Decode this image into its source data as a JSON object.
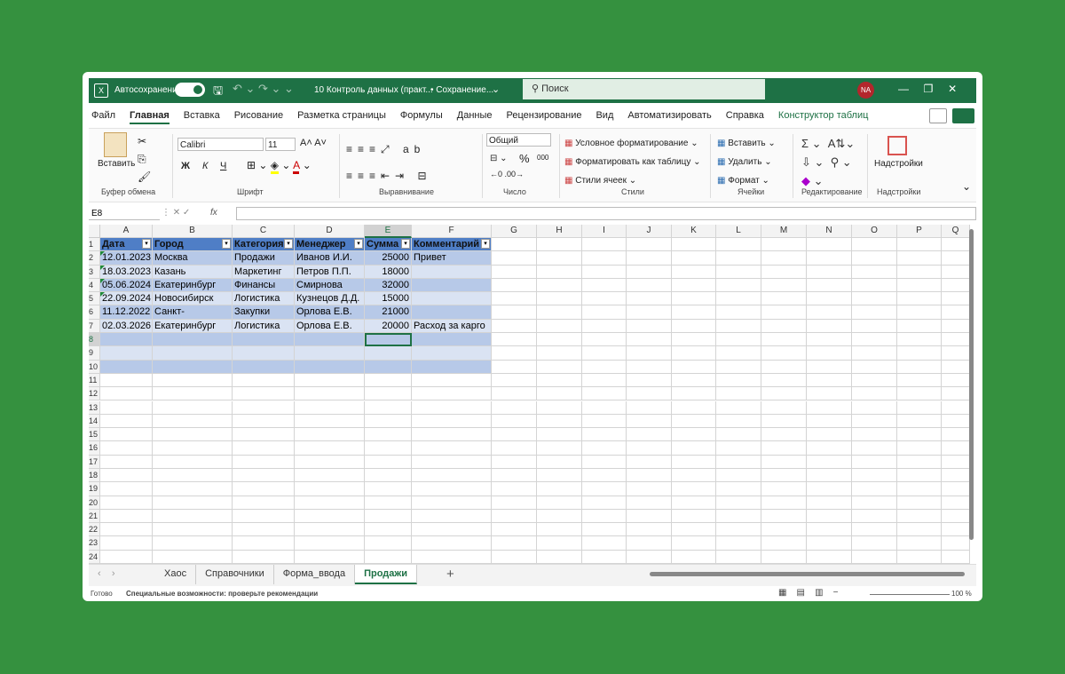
{
  "title_bar": {
    "autosave": "Автосохранение",
    "filename": "10 Контроль данных (практ...",
    "status": "• Сохранение...",
    "search": "Поиск",
    "user": "NA"
  },
  "ribbon": {
    "tabs": [
      "Файл",
      "Главная",
      "Вставка",
      "Рисование",
      "Разметка страницы",
      "Формулы",
      "Данные",
      "Рецензирование",
      "Вид",
      "Автоматизировать",
      "Справка",
      "Конструктор таблиц"
    ],
    "clipboard": {
      "paste": "Вставить",
      "label": "Буфер обмена"
    },
    "font": {
      "name": "Calibri",
      "size": "11",
      "bold": "Ж",
      "italic": "К",
      "underline": "Ч",
      "label": "Шрифт"
    },
    "alignment": {
      "label": "Выравнивание"
    },
    "number": {
      "format": "Общий",
      "percent": "%",
      "thousands": "000",
      "label": "Число"
    },
    "styles": {
      "items": [
        "Условное форматирование",
        "Форматировать как таблицу",
        "Стили ячеек"
      ],
      "label": "Стили"
    },
    "cells": {
      "items": [
        "Вставить",
        "Удалить",
        "Формат"
      ],
      "label": "Ячейки"
    },
    "editing": {
      "label": "Редактирование"
    },
    "addins": {
      "button": "Надстройки",
      "label": "Надстройки"
    }
  },
  "formula_bar": {
    "name_box": "E8",
    "fx": "fx"
  },
  "grid": {
    "columns": [
      "A",
      "B",
      "C",
      "D",
      "E",
      "F",
      "G",
      "H",
      "I",
      "J",
      "K",
      "L",
      "M",
      "N",
      "O",
      "P",
      "Q"
    ],
    "row_numbers": [
      1,
      2,
      3,
      4,
      5,
      6,
      7,
      8,
      9,
      10,
      11,
      12,
      13,
      14,
      15,
      16,
      17,
      18,
      19,
      20,
      21,
      22,
      23,
      24
    ]
  },
  "table": {
    "headers": [
      "Дата",
      "Город",
      "Категория",
      "Менеджер",
      "Сумма",
      "Комментарий"
    ],
    "rows": [
      [
        "12.01.2023",
        "Москва",
        "Продажи",
        "Иванов И.И.",
        25000,
        "Привет"
      ],
      [
        "18.03.2023",
        "Казань",
        "Маркетинг",
        "Петров П.П.",
        18000
      ],
      [
        "05.06.2024",
        "Екатеринбург",
        "Финансы",
        "Смирнова А.А.",
        32000
      ],
      [
        "22.09.2024",
        "Новосибирск",
        "Логистика",
        "Кузнецов Д.Д.",
        15000
      ],
      [
        "11.12.2022",
        "Санкт-Петербург",
        "Закупки",
        "Орлова Е.В.",
        21000
      ],
      [
        "02.03.2026",
        "Екатеринбург",
        "Логистика",
        "Орлова Е.В.",
        20000,
        "Расход за карго"
      ]
    ]
  },
  "sheets": {
    "tabs": [
      "Хаос",
      "Справочники",
      "Форма_ввода",
      "Продажи"
    ]
  },
  "status_bar": {
    "ready": "Готово",
    "accessibility": "Специальные возможности: проверьте рекомендации",
    "zoom": "100 %"
  }
}
